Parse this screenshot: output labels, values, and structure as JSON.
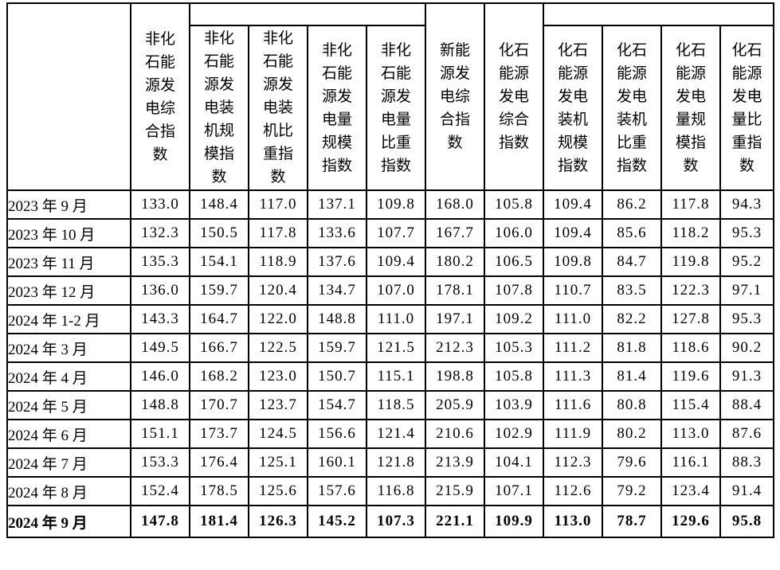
{
  "page": {
    "background_color": "#ffffff",
    "text_color": "#000000",
    "border_color": "#000000"
  },
  "table": {
    "corner_label": "",
    "column_headers": [
      {
        "name": "non-fossil-power-composite-index",
        "label": "非化\n石能\n源发\n电综\n合指\n数"
      },
      {
        "name": "non-fossil-installed-capacity-scale-index",
        "label": "非化\n石能\n源发\n电装\n机规\n模指\n数"
      },
      {
        "name": "non-fossil-installed-capacity-share-index",
        "label": "非化\n石能\n源发\n电装\n机比\n重指\n数"
      },
      {
        "name": "non-fossil-generation-scale-index",
        "label": "非化\n石能\n源发\n电量\n规模\n指数"
      },
      {
        "name": "non-fossil-generation-share-index",
        "label": "非化\n石能\n源发\n电量\n比重\n指数"
      },
      {
        "name": "new-energy-power-composite-index",
        "label": "新能\n源发\n电综\n合指\n数"
      },
      {
        "name": "fossil-power-composite-index",
        "label": "化石\n能源\n发电\n综合\n指数"
      },
      {
        "name": "fossil-installed-capacity-scale-index",
        "label": "化石\n能源\n发电\n装机\n规模\n指数"
      },
      {
        "name": "fossil-installed-capacity-share-index",
        "label": "化石\n能源\n发电\n装机\n比重\n指数"
      },
      {
        "name": "fossil-generation-scale-index",
        "label": "化石\n能源\n发电\n量规\n模指\n数"
      },
      {
        "name": "fossil-generation-share-index",
        "label": "化石\n能源\n发电\n量比\n重指\n数"
      }
    ],
    "rows": [
      {
        "date": "2023 年 9 月",
        "bold": false,
        "values": [
          "133.0",
          "148.4",
          "117.0",
          "137.1",
          "109.8",
          "168.0",
          "105.8",
          "109.4",
          "86.2",
          "117.8",
          "94.3"
        ]
      },
      {
        "date": "2023 年 10 月",
        "bold": false,
        "values": [
          "132.3",
          "150.5",
          "117.8",
          "133.6",
          "107.7",
          "167.7",
          "106.0",
          "109.4",
          "85.6",
          "118.2",
          "95.3"
        ]
      },
      {
        "date": "2023 年 11 月",
        "bold": false,
        "values": [
          "135.3",
          "154.1",
          "118.9",
          "137.6",
          "109.4",
          "180.2",
          "106.5",
          "109.8",
          "84.7",
          "119.8",
          "95.2"
        ]
      },
      {
        "date": "2023 年 12 月",
        "bold": false,
        "values": [
          "136.0",
          "159.7",
          "120.4",
          "134.7",
          "107.0",
          "178.1",
          "107.8",
          "110.7",
          "83.5",
          "122.3",
          "97.1"
        ]
      },
      {
        "date": "2024 年 1-2 月",
        "bold": false,
        "values": [
          "143.3",
          "164.7",
          "122.0",
          "148.8",
          "111.0",
          "197.1",
          "109.2",
          "111.0",
          "82.2",
          "127.8",
          "95.3"
        ]
      },
      {
        "date": "2024 年 3 月",
        "bold": false,
        "values": [
          "149.5",
          "166.7",
          "122.5",
          "159.7",
          "121.5",
          "212.3",
          "105.3",
          "111.2",
          "81.8",
          "118.6",
          "90.2"
        ]
      },
      {
        "date": "2024 年 4 月",
        "bold": false,
        "values": [
          "146.0",
          "168.2",
          "123.0",
          "150.7",
          "115.1",
          "198.8",
          "105.8",
          "111.3",
          "81.4",
          "119.6",
          "91.3"
        ]
      },
      {
        "date": "2024 年 5 月",
        "bold": false,
        "values": [
          "148.8",
          "170.7",
          "123.7",
          "154.7",
          "118.5",
          "205.9",
          "103.9",
          "111.6",
          "80.8",
          "115.4",
          "88.4"
        ]
      },
      {
        "date": "2024 年 6 月",
        "bold": false,
        "values": [
          "151.1",
          "173.7",
          "124.5",
          "156.6",
          "121.4",
          "210.6",
          "102.9",
          "111.9",
          "80.2",
          "113.0",
          "87.6"
        ]
      },
      {
        "date": "2024 年 7 月",
        "bold": false,
        "values": [
          "153.3",
          "176.4",
          "125.1",
          "160.1",
          "121.8",
          "213.9",
          "104.1",
          "112.3",
          "79.6",
          "116.1",
          "88.3"
        ]
      },
      {
        "date": "2024 年 8 月",
        "bold": false,
        "values": [
          "152.4",
          "178.5",
          "125.6",
          "157.6",
          "116.8",
          "215.9",
          "107.1",
          "112.6",
          "79.2",
          "123.4",
          "91.4"
        ]
      },
      {
        "date": "2024 年 9 月",
        "bold": true,
        "values": [
          "147.8",
          "181.4",
          "126.3",
          "145.2",
          "107.3",
          "221.1",
          "109.9",
          "113.0",
          "78.7",
          "129.6",
          "95.8"
        ]
      }
    ]
  }
}
